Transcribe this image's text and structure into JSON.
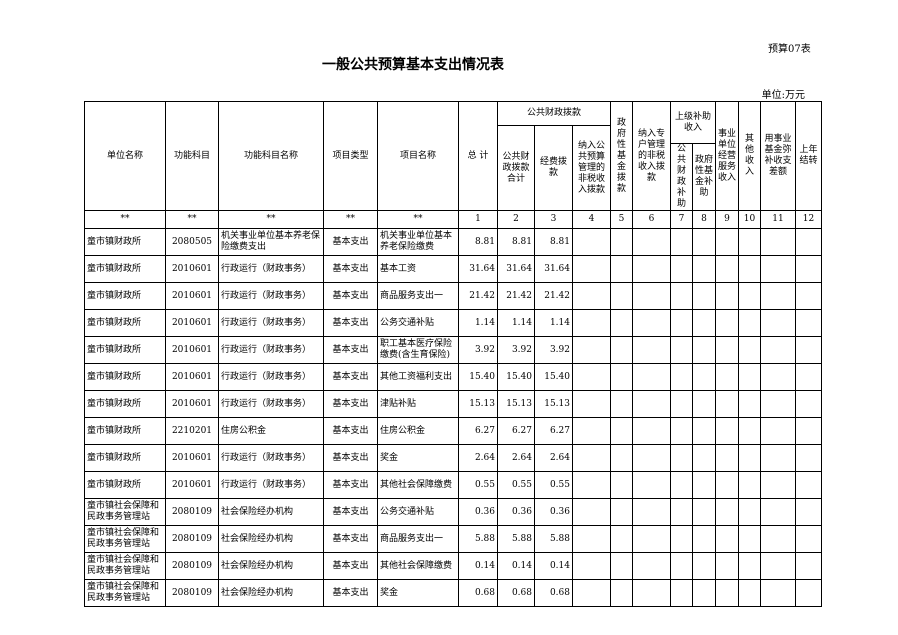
{
  "form_code": "预算07表",
  "title": "一般公共预算基本支出情况表",
  "unit": "单位:万元",
  "headers": {
    "unit_name": "单位名称",
    "func_code": "功能科目",
    "func_name": "功能科目名称",
    "proj_type": "项目类型",
    "proj_name": "项目名称",
    "total": "总 计",
    "public_finance": "公共财政拨款",
    "pf_total": "公共财政拨款合计",
    "funding": "经费拨款",
    "nontax": "纳入公共预算管理的非税收入拨款",
    "gov_fund": "政府性基金拨款",
    "special_nontax": "纳入专户管理的非税收入拨款",
    "superior": "上级补助收入",
    "sup_public": "公共财政补助",
    "sup_gov": "政府性基金补助",
    "biz_income": "事业单位经营服务收入",
    "other": "其他收入",
    "fund_make": "用事业基金弥补收支差额",
    "carryover": "上年结转"
  },
  "index_row": [
    "**",
    "**",
    "**",
    "**",
    "**",
    "1",
    "2",
    "3",
    "4",
    "5",
    "6",
    "7",
    "8",
    "9",
    "10",
    "11",
    "12"
  ],
  "rows": [
    [
      "童市镇财政所",
      "2080505",
      "机关事业单位基本养老保险缴费支出",
      "基本支出",
      "机关事业单位基本养老保险缴费",
      "8.81",
      "8.81",
      "8.81"
    ],
    [
      "童市镇财政所",
      "2010601",
      "行政运行（财政事务）",
      "基本支出",
      "基本工资",
      "31.64",
      "31.64",
      "31.64"
    ],
    [
      "童市镇财政所",
      "2010601",
      "行政运行（财政事务）",
      "基本支出",
      "商品服务支出一",
      "21.42",
      "21.42",
      "21.42"
    ],
    [
      "童市镇财政所",
      "2010601",
      "行政运行（财政事务）",
      "基本支出",
      "公务交通补贴",
      "1.14",
      "1.14",
      "1.14"
    ],
    [
      "童市镇财政所",
      "2010601",
      "行政运行（财政事务）",
      "基本支出",
      "职工基本医疗保险缴费(含生育保险)",
      "3.92",
      "3.92",
      "3.92"
    ],
    [
      "童市镇财政所",
      "2010601",
      "行政运行（财政事务）",
      "基本支出",
      "其他工资福利支出",
      "15.40",
      "15.40",
      "15.40"
    ],
    [
      "童市镇财政所",
      "2010601",
      "行政运行（财政事务）",
      "基本支出",
      "津贴补贴",
      "15.13",
      "15.13",
      "15.13"
    ],
    [
      "童市镇财政所",
      "2210201",
      "住房公积金",
      "基本支出",
      "住房公积金",
      "6.27",
      "6.27",
      "6.27"
    ],
    [
      "童市镇财政所",
      "2010601",
      "行政运行（财政事务）",
      "基本支出",
      "奖金",
      "2.64",
      "2.64",
      "2.64"
    ],
    [
      "童市镇财政所",
      "2010601",
      "行政运行（财政事务）",
      "基本支出",
      "其他社会保障缴费",
      "0.55",
      "0.55",
      "0.55"
    ],
    [
      "童市镇社会保障和民政事务管理站",
      "2080109",
      "社会保险经办机构",
      "基本支出",
      "公务交通补贴",
      "0.36",
      "0.36",
      "0.36"
    ],
    [
      "童市镇社会保障和民政事务管理站",
      "2080109",
      "社会保险经办机构",
      "基本支出",
      "商品服务支出一",
      "5.88",
      "5.88",
      "5.88"
    ],
    [
      "童市镇社会保障和民政事务管理站",
      "2080109",
      "社会保险经办机构",
      "基本支出",
      "其他社会保障缴费",
      "0.14",
      "0.14",
      "0.14"
    ],
    [
      "童市镇社会保障和民政事务管理站",
      "2080109",
      "社会保险经办机构",
      "基本支出",
      "奖金",
      "0.68",
      "0.68",
      "0.68"
    ]
  ]
}
